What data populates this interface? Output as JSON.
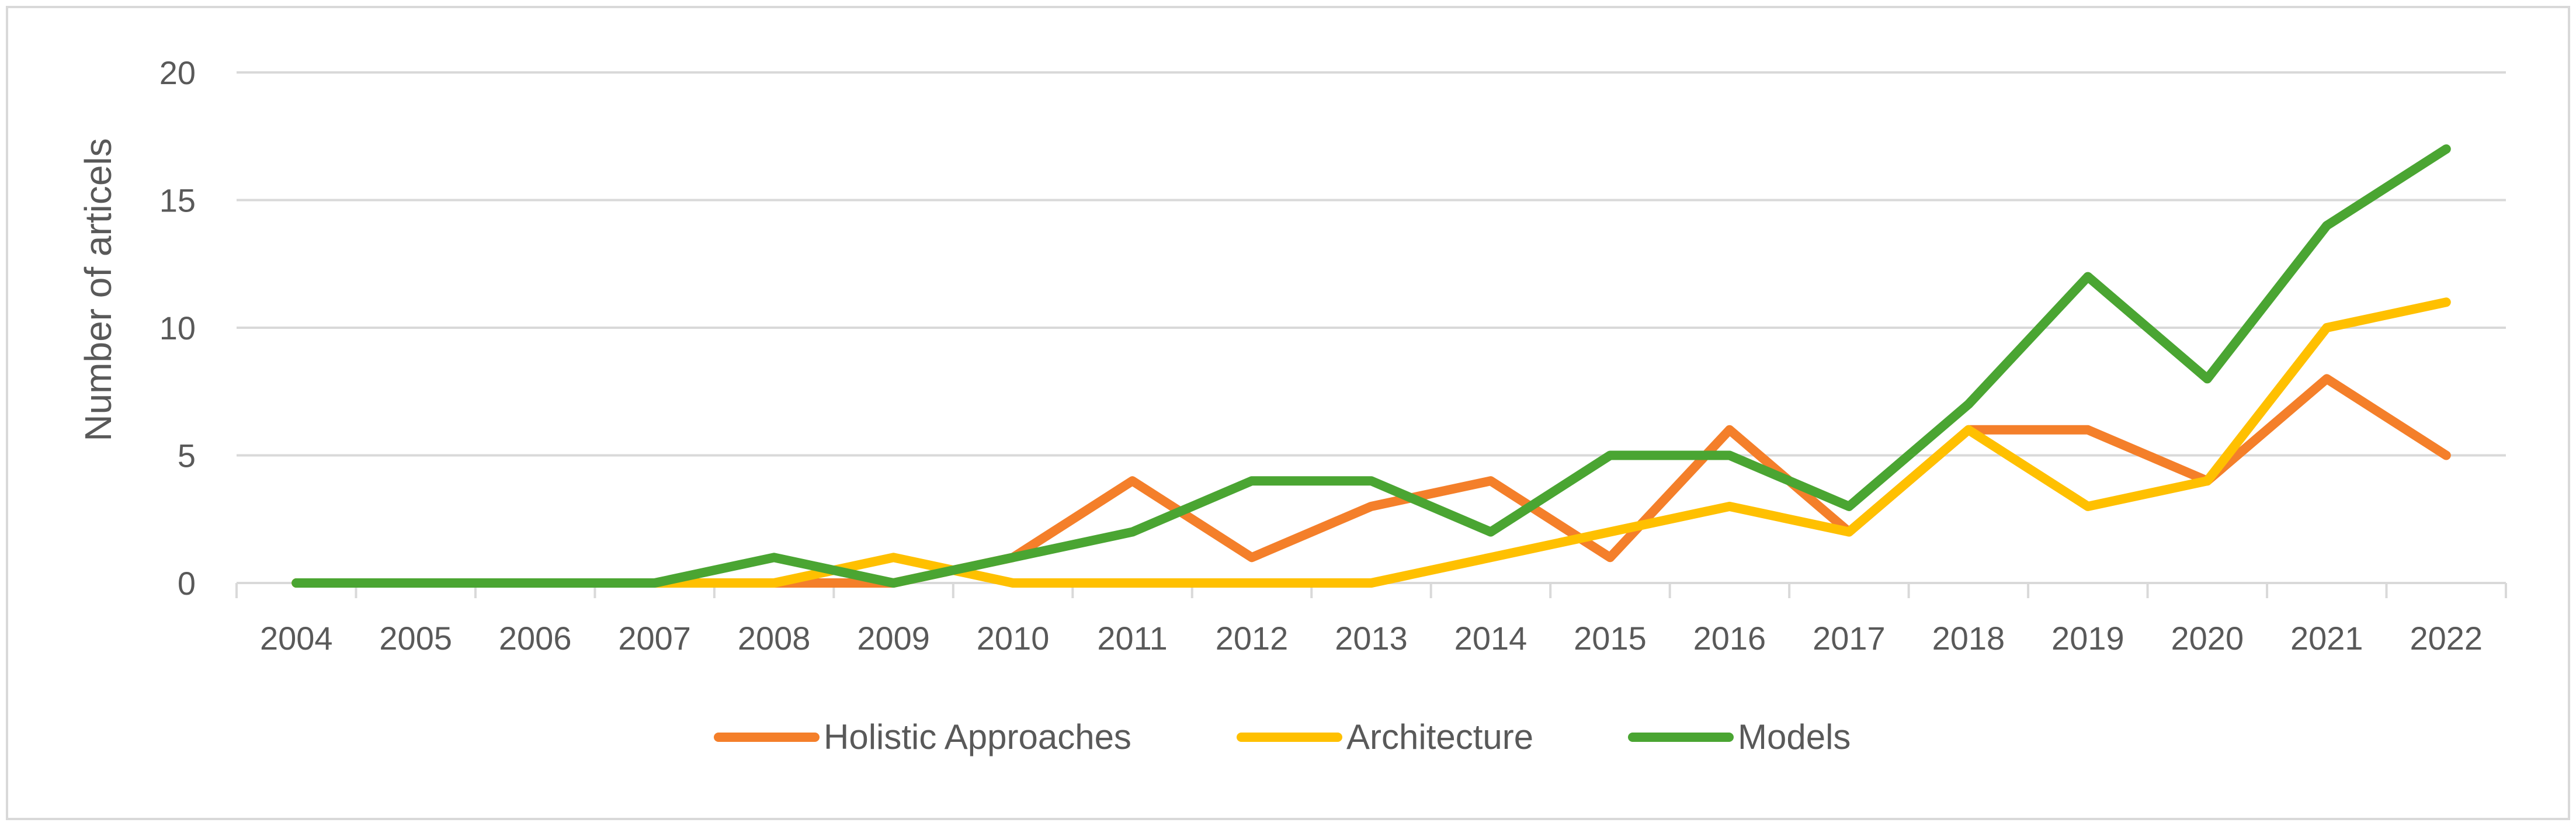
{
  "chart_data": {
    "type": "line",
    "title": "",
    "xlabel": "",
    "ylabel": "Number of articels",
    "ylim": [
      0,
      20
    ],
    "yticks": [
      0,
      5,
      10,
      15,
      20
    ],
    "grid": true,
    "legend_position": "bottom",
    "categories": [
      "2004",
      "2005",
      "2006",
      "2007",
      "2008",
      "2009",
      "2010",
      "2011",
      "2012",
      "2013",
      "2014",
      "2015",
      "2016",
      "2017",
      "2018",
      "2019",
      "2020",
      "2021",
      "2022"
    ],
    "series": [
      {
        "name": "Holistic Approaches",
        "color": "#F47F2A",
        "values": [
          0,
          0,
          0,
          0,
          0,
          0,
          1,
          4,
          1,
          3,
          4,
          1,
          6,
          2,
          6,
          6,
          4,
          8,
          5
        ]
      },
      {
        "name": "Architecture",
        "color": "#FFC000",
        "values": [
          0,
          0,
          0,
          0,
          0,
          1,
          0,
          0,
          0,
          0,
          1,
          2,
          3,
          2,
          6,
          3,
          4,
          10,
          11
        ]
      },
      {
        "name": "Models",
        "color": "#4AA532",
        "values": [
          0,
          0,
          0,
          0,
          1,
          0,
          1,
          2,
          4,
          4,
          2,
          5,
          5,
          3,
          7,
          12,
          8,
          14,
          17
        ]
      }
    ]
  }
}
